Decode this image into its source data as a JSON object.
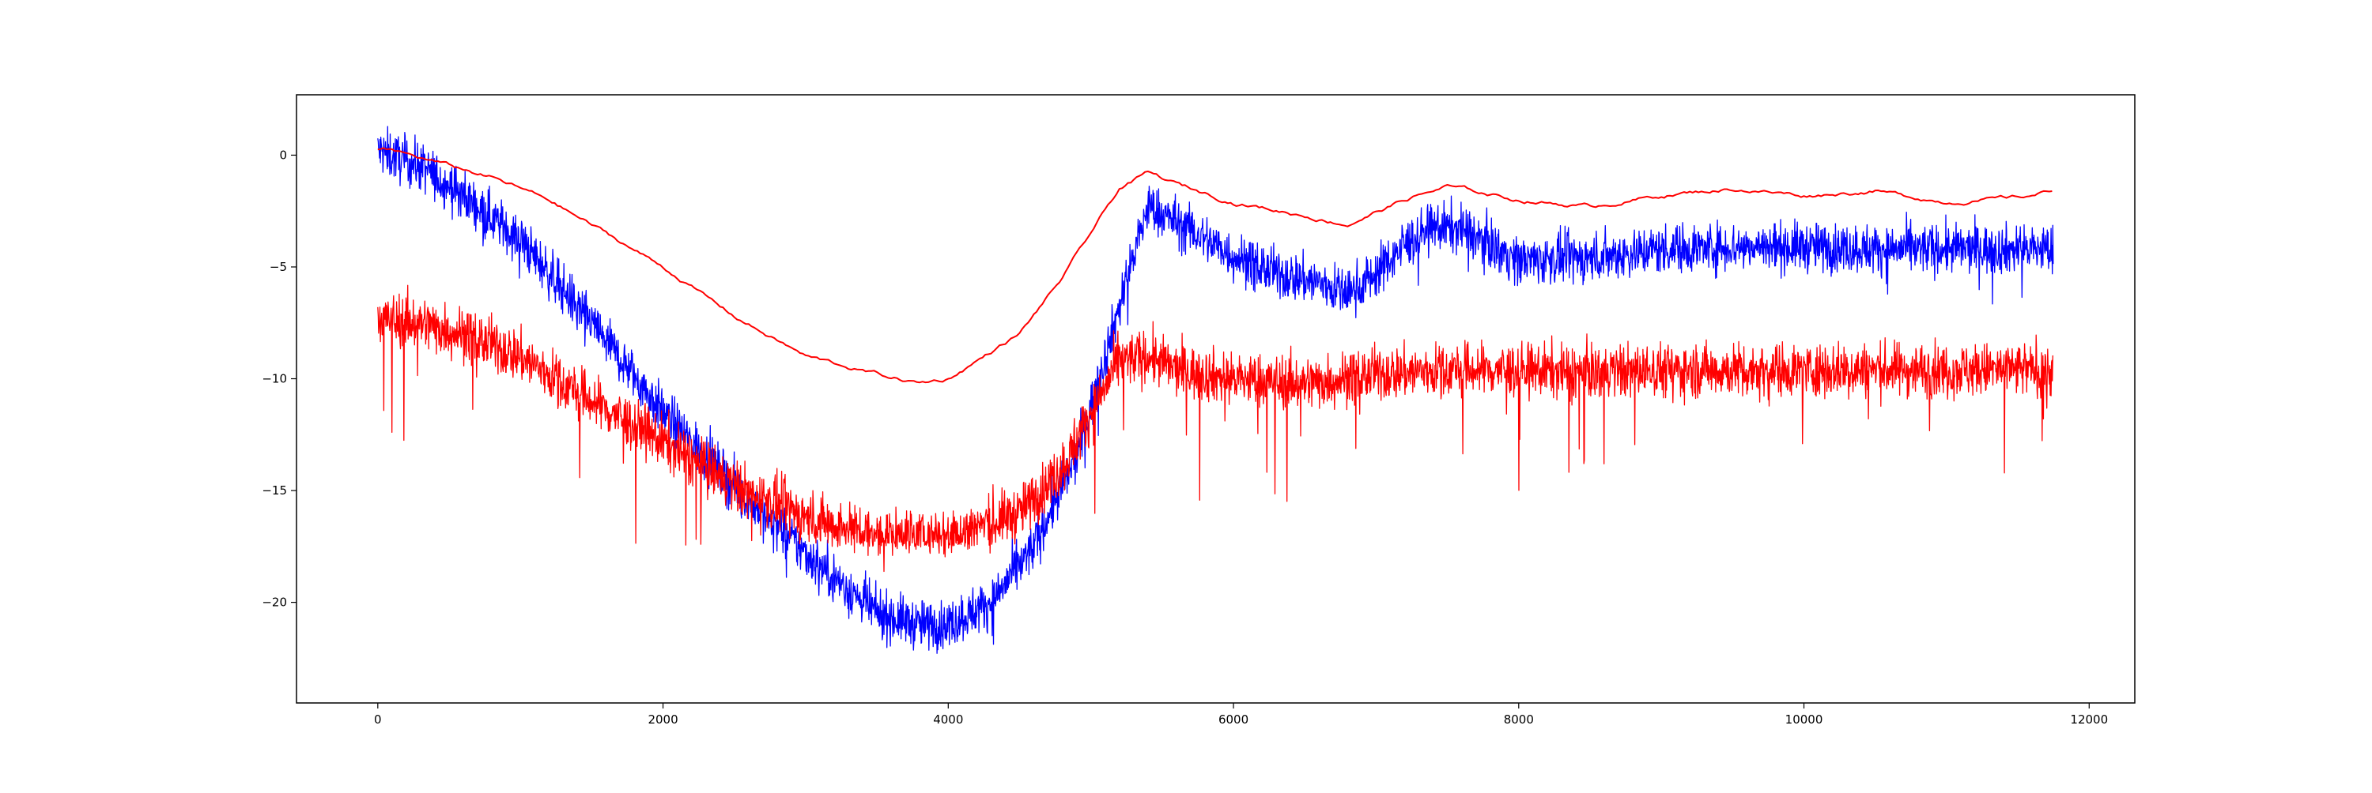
{
  "chart_data": {
    "type": "line",
    "title": "",
    "xlabel": "",
    "ylabel": "",
    "xlim": [
      -570,
      12320
    ],
    "ylim": [
      -24.5,
      2.7
    ],
    "x_ticks": [
      0,
      2000,
      4000,
      6000,
      8000,
      10000,
      12000
    ],
    "x_tick_labels": [
      "0",
      "2000",
      "4000",
      "6000",
      "8000",
      "10000",
      "12000"
    ],
    "y_ticks": [
      0,
      -5,
      -10,
      -15,
      -20
    ],
    "y_tick_labels": [
      "0",
      "−5",
      "−10",
      "−15",
      "−20"
    ],
    "grid": false,
    "legend": "none",
    "x_count": 11750,
    "series": [
      {
        "color": "#0000ff",
        "style": "noisy",
        "noise_amplitude": 1.1,
        "spike_rate": 0.01,
        "spike_depth": 1.2,
        "envelope_x": [
          0,
          300,
          600,
          1000,
          1500,
          2000,
          2500,
          3000,
          3500,
          3800,
          4000,
          4300,
          4600,
          4900,
          5100,
          5300,
          5400,
          5600,
          6000,
          6300,
          6600,
          6800,
          7000,
          7200,
          7400,
          7600,
          8000,
          8500,
          9000,
          9500,
          10000,
          10500,
          11000,
          11500,
          11750
        ],
        "envelope_y": [
          0.2,
          -0.5,
          -1.8,
          -3.8,
          -7.5,
          -11.5,
          -14.8,
          -17.8,
          -20.5,
          -21.0,
          -21.0,
          -20.0,
          -17.5,
          -13.5,
          -9.0,
          -4.5,
          -2.3,
          -3.0,
          -4.5,
          -5.3,
          -5.7,
          -6.2,
          -5.3,
          -4.0,
          -3.2,
          -3.3,
          -4.7,
          -4.6,
          -4.2,
          -4.1,
          -4.1,
          -4.2,
          -4.2,
          -4.2,
          -4.2
        ]
      },
      {
        "color": "#ff0000",
        "style": "noisy",
        "noise_amplitude": 1.2,
        "spike_rate": 0.015,
        "spike_depth": 3.5,
        "floor": -17.5,
        "envelope_x": [
          0,
          300,
          600,
          1000,
          1500,
          2000,
          2500,
          3000,
          3500,
          4000,
          4500,
          4800,
          5000,
          5200,
          5400,
          5600,
          6000,
          6500,
          7000,
          7500,
          8000,
          8500,
          9000,
          9500,
          10000,
          10500,
          11000,
          11500,
          11750
        ],
        "envelope_y": [
          -7.3,
          -7.5,
          -8.0,
          -9.0,
          -11.0,
          -12.8,
          -14.8,
          -16.2,
          -17.0,
          -17.0,
          -16.0,
          -14.0,
          -11.5,
          -9.2,
          -9.0,
          -9.6,
          -10.0,
          -10.2,
          -9.8,
          -9.6,
          -9.6,
          -9.7,
          -9.6,
          -9.6,
          -9.6,
          -9.6,
          -9.6,
          -9.6,
          -9.6
        ]
      },
      {
        "color": "#ff0000",
        "style": "smooth",
        "noise_amplitude": 0.12,
        "envelope_x": [
          0,
          100,
          400,
          800,
          1200,
          1600,
          2000,
          2500,
          3000,
          3500,
          3800,
          4000,
          4500,
          4800,
          5000,
          5200,
          5400,
          5600,
          6000,
          6500,
          6800,
          7200,
          7500,
          8000,
          8500,
          9000,
          9500,
          10000,
          10500,
          11000,
          11500,
          11750
        ],
        "envelope_y": [
          0.2,
          0.2,
          -0.3,
          -1.0,
          -2.0,
          -3.5,
          -5.0,
          -7.2,
          -9.0,
          -9.8,
          -10.2,
          -10.0,
          -8.0,
          -5.5,
          -3.5,
          -1.5,
          -0.8,
          -1.3,
          -2.1,
          -2.7,
          -3.1,
          -2.0,
          -1.4,
          -2.0,
          -2.3,
          -1.8,
          -1.5,
          -1.8,
          -1.6,
          -2.1,
          -1.9,
          -1.6
        ]
      }
    ]
  }
}
